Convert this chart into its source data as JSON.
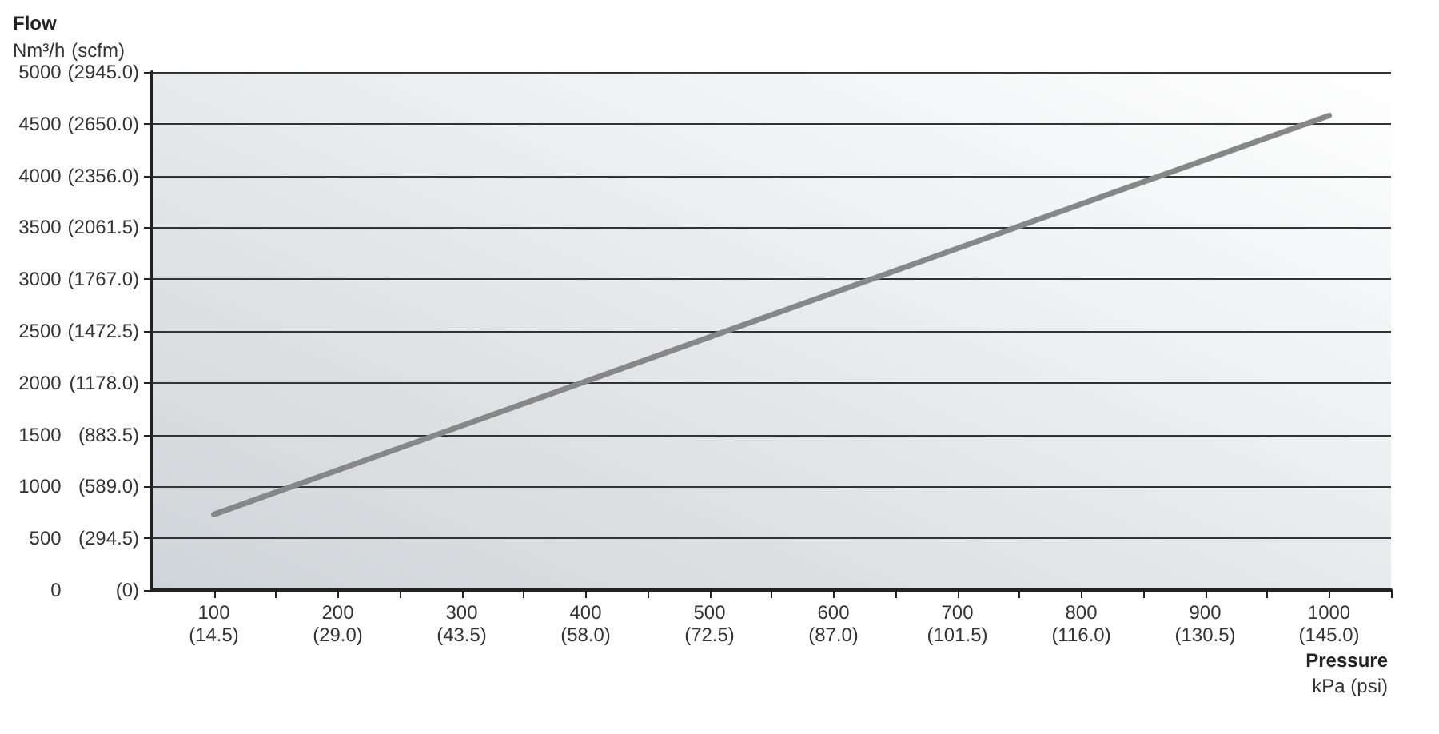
{
  "chart_data": {
    "type": "line",
    "xlabel": "Pressure\nkPa (psi)",
    "ylabel": "Flow\nNm³/h",
    "y2label": "(scfm)",
    "x": [
      100,
      1000
    ],
    "series": [
      {
        "color": "#878787",
        "values": [
          730,
          4580
        ]
      }
    ],
    "xlim": [
      50,
      1050
    ],
    "xticks": [
      100,
      {
        "value": 150,
        "label": null
      },
      200,
      {
        "value": 250,
        "label": null
      },
      300,
      {
        "value": 350,
        "label": null
      },
      400,
      {
        "value": 450,
        "label": null
      },
      500,
      {
        "value": 550,
        "label": null
      },
      600,
      {
        "value": 650,
        "label": null
      },
      700,
      {
        "value": 750,
        "label": null
      },
      800,
      {
        "value": 850,
        "label": null
      },
      900,
      {
        "value": 950,
        "label": null
      },
      1000,
      {
        "value": 1050,
        "label": null
      }
    ],
    "x2lim": [
      7.25,
      152.25
    ],
    "x2ticks": [
      {
        "value": 14.5,
        "label": "(14.5)"
      },
      {
        "value": 29.0,
        "label": "(29.0)"
      },
      {
        "value": 43.5,
        "label": "(43.5)"
      },
      {
        "value": 58.0,
        "label": "(58.0)"
      },
      {
        "value": 72.5,
        "label": "(72.5)"
      },
      {
        "value": 87.0,
        "label": "(87.0)"
      },
      {
        "value": 101.5,
        "label": "(101.5)"
      },
      {
        "value": 116.0,
        "label": "(116.0)"
      },
      {
        "value": 130.5,
        "label": "(130.5)"
      },
      {
        "value": 145.0,
        "label": "(145.0)"
      }
    ],
    "ylim": [
      0,
      5000
    ],
    "yticks": [
      0,
      500,
      1000,
      1500,
      2000,
      2500,
      3000,
      3500,
      4000,
      4500,
      5000
    ],
    "y2lim": [
      0,
      2945.0
    ],
    "y2ticks": [
      {
        "value": 0,
        "label": "(0)"
      },
      {
        "value": 294.5,
        "label": "(294.5)"
      },
      {
        "value": 589.0,
        "label": "(589.0)"
      },
      {
        "value": 883.5,
        "label": "(883.5)"
      },
      {
        "value": 1178.0,
        "label": "(1178.0)"
      },
      {
        "value": 1472.5,
        "label": "(1472.5)"
      },
      {
        "value": 1767.0,
        "label": "(1767.0)"
      },
      {
        "value": 2061.5,
        "label": "(2061.5)"
      },
      {
        "value": 2356.0,
        "label": "(2356.0)"
      },
      {
        "value": 2650.0,
        "label": "(2650.0)"
      },
      {
        "value": 2945.0,
        "label": "(2945.0)"
      }
    ],
    "grid": "y",
    "marker": "none",
    "line_style": "solid"
  }
}
